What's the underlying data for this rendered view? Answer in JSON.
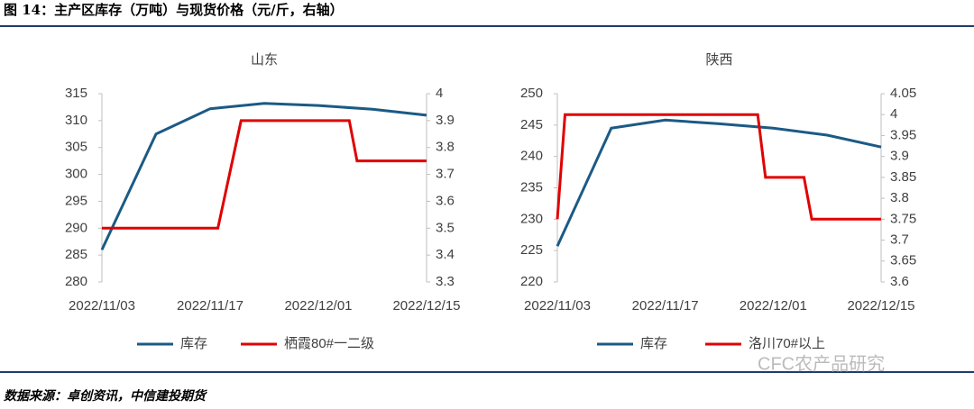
{
  "header": {
    "title": "图 14：主产区库存（万吨）与现货价格（元/斤，右轴）"
  },
  "chart_data": [
    {
      "type": "line",
      "title": "山东",
      "xlim": [
        "2022/11/03",
        "2022/12/15"
      ],
      "xticks": [
        "2022/11/03",
        "2022/11/17",
        "2022/12/01",
        "2022/12/15"
      ],
      "ylim": [
        280,
        315
      ],
      "yticks": [
        280,
        285,
        290,
        295,
        300,
        305,
        310,
        315
      ],
      "y2lim": [
        3.3,
        4
      ],
      "y2ticks": [
        3.3,
        3.4,
        3.5,
        3.6,
        3.7,
        3.8,
        3.9,
        4
      ],
      "series": [
        {
          "name": "库存",
          "color": "#1b5a85",
          "x": [
            "2022/11/03",
            "2022/11/10",
            "2022/11/17",
            "2022/11/24",
            "2022/12/01",
            "2022/12/08",
            "2022/12/15"
          ],
          "values": [
            286,
            307.5,
            312.2,
            313.2,
            312.8,
            312.1,
            311
          ]
        },
        {
          "name": "栖霞80#一二级",
          "color": "#e00000",
          "axis": "y2",
          "x": [
            "2022/11/03",
            "2022/11/18",
            "2022/11/21",
            "2022/12/05",
            "2022/12/06",
            "2022/12/15"
          ],
          "values": [
            3.5,
            3.5,
            3.9,
            3.9,
            3.75,
            3.75
          ]
        }
      ]
    },
    {
      "type": "line",
      "title": "陕西",
      "xlim": [
        "2022/11/03",
        "2022/12/15"
      ],
      "xticks": [
        "2022/11/03",
        "2022/11/17",
        "2022/12/01",
        "2022/12/15"
      ],
      "ylim": [
        220,
        250
      ],
      "yticks": [
        220,
        225,
        230,
        235,
        240,
        245,
        250
      ],
      "y2lim": [
        3.6,
        4.05
      ],
      "y2ticks": [
        3.6,
        3.65,
        3.7,
        3.75,
        3.8,
        3.85,
        3.9,
        3.95,
        4,
        4.05
      ],
      "series": [
        {
          "name": "库存",
          "color": "#1b5a85",
          "x": [
            "2022/11/03",
            "2022/11/10",
            "2022/11/17",
            "2022/11/24",
            "2022/12/01",
            "2022/12/08",
            "2022/12/15"
          ],
          "values": [
            225.7,
            244.5,
            245.8,
            245.2,
            244.5,
            243.4,
            241.5
          ]
        },
        {
          "name": "洛川70#以上",
          "color": "#e00000",
          "axis": "y2",
          "x": [
            "2022/11/03",
            "2022/11/04",
            "2022/11/29",
            "2022/11/30",
            "2022/12/05",
            "2022/12/06",
            "2022/12/15"
          ],
          "values": [
            3.75,
            4,
            4,
            3.85,
            3.85,
            3.75,
            3.75
          ]
        }
      ]
    }
  ],
  "watermark": "CFC农产品研究",
  "source": "数据来源：卓创资讯，中信建投期货"
}
